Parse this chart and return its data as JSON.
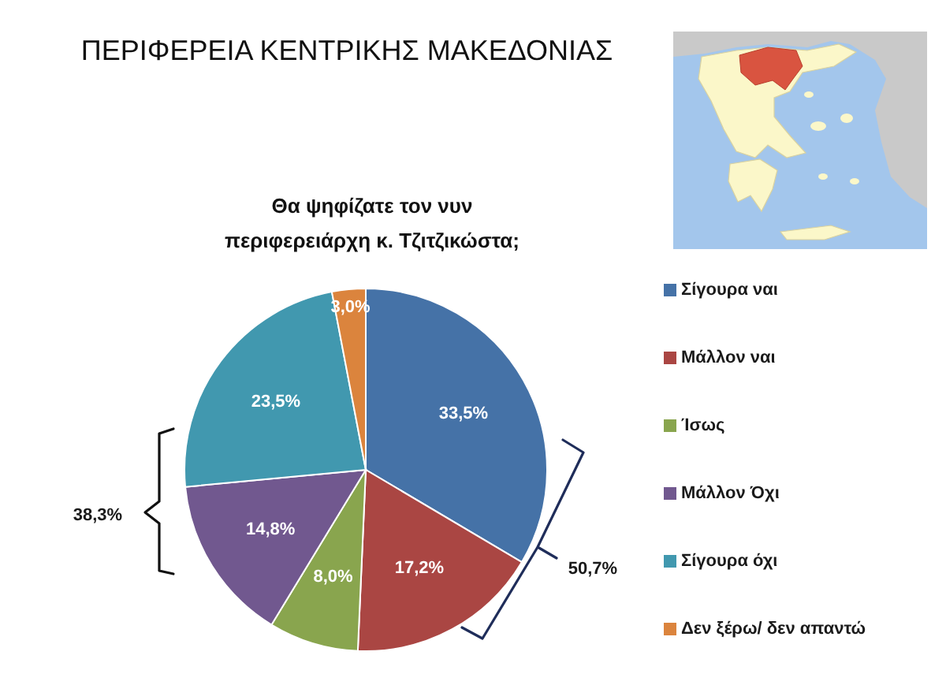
{
  "chart_data": {
    "type": "pie",
    "title": "ΠΕΡΙΦΕΡΕΙΑ ΚΕΝΤΡΙΚΗΣ ΜΑΚΕΔΟΝΙΑΣ",
    "subtitle": "Θα ψηφίζατε τον νυν\nπεριφερειάρχη κ. Τζιτζικώστα;",
    "categories": [
      "Σίγουρα ναι",
      "Μάλλον ναι",
      "Ίσως",
      "Μάλλον Όχι",
      "Σίγουρα όχι",
      "Δεν ξέρω/ δεν απαντώ"
    ],
    "values": [
      33.5,
      17.2,
      8.0,
      14.8,
      23.5,
      3.0
    ],
    "colors": [
      "#4572a7",
      "#aa4643",
      "#89a54e",
      "#71588f",
      "#4198af",
      "#db843d"
    ],
    "value_labels": [
      "33,5%",
      "17,2%",
      "8,0%",
      "14,8%",
      "23,5%",
      "3,0%"
    ],
    "annotations": [
      "38,3%",
      "50,7%"
    ],
    "legend": "right"
  }
}
